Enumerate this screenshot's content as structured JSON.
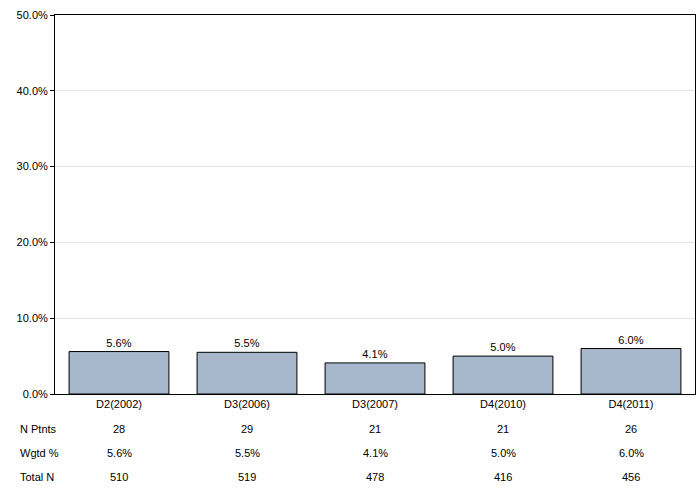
{
  "chart_data": {
    "type": "bar",
    "categories": [
      "D2(2002)",
      "D3(2006)",
      "D3(2007)",
      "D4(2010)",
      "D4(2011)"
    ],
    "values": [
      5.6,
      5.5,
      4.1,
      5.0,
      6.0
    ],
    "value_labels": [
      "5.6%",
      "5.5%",
      "4.1%",
      "5.0%",
      "6.0%"
    ],
    "data_labels": true,
    "color": "#a8b8cc",
    "ylim": [
      0,
      50
    ],
    "yticks": [
      {
        "value": 0,
        "label": "0.0%"
      },
      {
        "value": 10,
        "label": "10.0%"
      },
      {
        "value": 20,
        "label": "20.0%"
      },
      {
        "value": 30,
        "label": "30.0%"
      },
      {
        "value": 40,
        "label": "40.0%"
      },
      {
        "value": 50,
        "label": "50.0%"
      }
    ],
    "grid": true
  },
  "table": {
    "rows": [
      {
        "label": "N Ptnts",
        "cells": [
          28,
          29,
          21,
          21,
          26
        ]
      },
      {
        "label": "Wgtd %",
        "cells": [
          "5.6%",
          "5.5%",
          "4.1%",
          "5.0%",
          "6.0%"
        ]
      },
      {
        "label": "Total N",
        "cells": [
          510,
          519,
          478,
          416,
          456
        ]
      }
    ]
  }
}
